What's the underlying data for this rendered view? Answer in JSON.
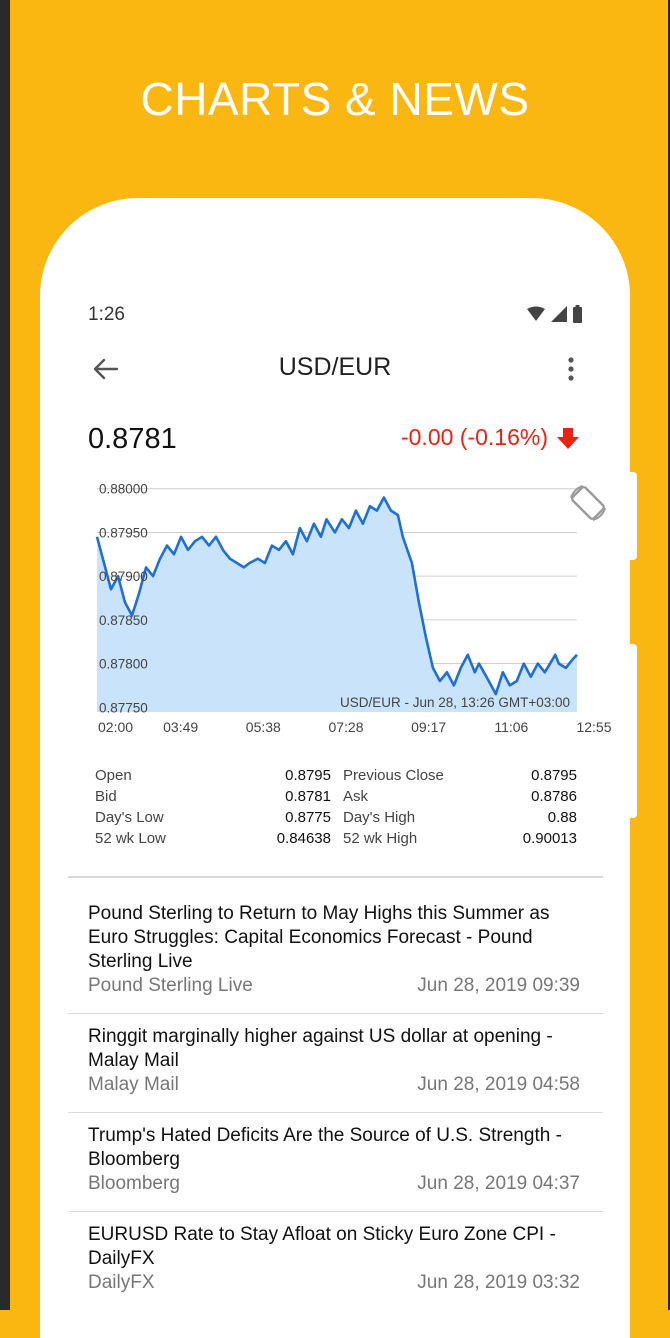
{
  "promo": {
    "title": "CHARTS & NEWS"
  },
  "status_bar": {
    "time": "1:26",
    "icons": [
      "wifi-icon",
      "signal-icon",
      "battery-icon"
    ]
  },
  "header": {
    "title": "USD/EUR",
    "back_icon": "arrow-left-icon",
    "menu_icon": "more-vertical-icon"
  },
  "quote": {
    "price": "0.8781",
    "change": "-0.00 (-0.16%)",
    "direction_icon": "arrow-down-icon",
    "change_color": "#F02011"
  },
  "chart_data": {
    "type": "area",
    "rotate_icon": "screen-rotation-icon",
    "caption": "USD/EUR - Jun 28, 13:26 GMT+03:00",
    "x_ticks": [
      "02:00",
      "03:49",
      "05:38",
      "07:28",
      "09:17",
      "11:06",
      "12:55"
    ],
    "y_ticks": [
      "0.88000",
      "0.87950",
      "0.87900",
      "0.87850",
      "0.87800",
      "0.87750"
    ],
    "ylim": [
      0.8774,
      0.8801
    ],
    "line_color": "#1F6FD8",
    "fill_color": "#C9E3FA",
    "points": [
      [
        "02:00",
        0.87945
      ],
      [
        "02:10",
        0.87915
      ],
      [
        "02:20",
        0.87885
      ],
      [
        "02:30",
        0.879
      ],
      [
        "02:40",
        0.8787
      ],
      [
        "02:50",
        0.87855
      ],
      [
        "03:00",
        0.8788
      ],
      [
        "03:10",
        0.8791
      ],
      [
        "03:20",
        0.879
      ],
      [
        "03:30",
        0.8792
      ],
      [
        "03:40",
        0.87935
      ],
      [
        "03:50",
        0.87925
      ],
      [
        "04:00",
        0.87945
      ],
      [
        "04:10",
        0.8793
      ],
      [
        "04:20",
        0.8794
      ],
      [
        "04:30",
        0.87945
      ],
      [
        "04:40",
        0.87935
      ],
      [
        "04:50",
        0.87945
      ],
      [
        "05:00",
        0.8793
      ],
      [
        "05:10",
        0.8792
      ],
      [
        "05:20",
        0.87915
      ],
      [
        "05:30",
        0.8791
      ],
      [
        "05:38",
        0.87915
      ],
      [
        "05:50",
        0.8792
      ],
      [
        "06:00",
        0.87915
      ],
      [
        "06:10",
        0.87935
      ],
      [
        "06:20",
        0.8793
      ],
      [
        "06:30",
        0.8794
      ],
      [
        "06:40",
        0.87925
      ],
      [
        "06:50",
        0.87955
      ],
      [
        "07:00",
        0.8794
      ],
      [
        "07:10",
        0.8796
      ],
      [
        "07:20",
        0.87945
      ],
      [
        "07:28",
        0.87965
      ],
      [
        "07:40",
        0.8795
      ],
      [
        "07:50",
        0.87965
      ],
      [
        "08:00",
        0.87955
      ],
      [
        "08:10",
        0.87975
      ],
      [
        "08:20",
        0.8796
      ],
      [
        "08:30",
        0.8798
      ],
      [
        "08:40",
        0.87975
      ],
      [
        "08:50",
        0.8799
      ],
      [
        "09:00",
        0.87975
      ],
      [
        "09:10",
        0.8797
      ],
      [
        "09:17",
        0.87945
      ],
      [
        "09:30",
        0.87915
      ],
      [
        "09:40",
        0.8787
      ],
      [
        "09:50",
        0.8783
      ],
      [
        "10:00",
        0.87795
      ],
      [
        "10:10",
        0.8778
      ],
      [
        "10:20",
        0.8779
      ],
      [
        "10:30",
        0.87775
      ],
      [
        "10:40",
        0.87795
      ],
      [
        "10:50",
        0.8781
      ],
      [
        "11:00",
        0.8779
      ],
      [
        "11:06",
        0.878
      ],
      [
        "11:20",
        0.8778
      ],
      [
        "11:30",
        0.87765
      ],
      [
        "11:40",
        0.8779
      ],
      [
        "11:50",
        0.87775
      ],
      [
        "12:00",
        0.8778
      ],
      [
        "12:10",
        0.878
      ],
      [
        "12:20",
        0.87785
      ],
      [
        "12:30",
        0.878
      ],
      [
        "12:40",
        0.8779
      ],
      [
        "12:55",
        0.8781
      ],
      [
        "13:00",
        0.878
      ],
      [
        "13:10",
        0.87795
      ],
      [
        "13:20",
        0.87805
      ],
      [
        "13:26",
        0.8781
      ]
    ]
  },
  "stats": [
    {
      "label": "Open",
      "value": "0.8795",
      "label2": "Previous Close",
      "value2": "0.8795"
    },
    {
      "label": "Bid",
      "value": "0.8781",
      "label2": "Ask",
      "value2": "0.8786"
    },
    {
      "label": "Day's Low",
      "value": "0.8775",
      "label2": "Day's High",
      "value2": "0.88"
    },
    {
      "label": "52 wk Low",
      "value": "0.84638",
      "label2": "52 wk High",
      "value2": "0.90013"
    }
  ],
  "news": [
    {
      "title": "Pound Sterling to Return to May Highs this Summer as Euro Struggles: Capital Economics Forecast - Pound Sterling Live",
      "source": "Pound Sterling Live",
      "date": "Jun 28, 2019 09:39"
    },
    {
      "title": "Ringgit marginally higher against US dollar at opening - Malay Mail",
      "source": "Malay Mail",
      "date": "Jun 28, 2019 04:58"
    },
    {
      "title": "Trump's Hated Deficits Are the Source of U.S. Strength - Bloomberg",
      "source": "Bloomberg",
      "date": "Jun 28, 2019 04:37"
    },
    {
      "title": "EURUSD Rate to Stay Afloat on Sticky Euro Zone CPI - DailyFX",
      "source": "DailyFX",
      "date": "Jun 28, 2019 03:32"
    }
  ]
}
